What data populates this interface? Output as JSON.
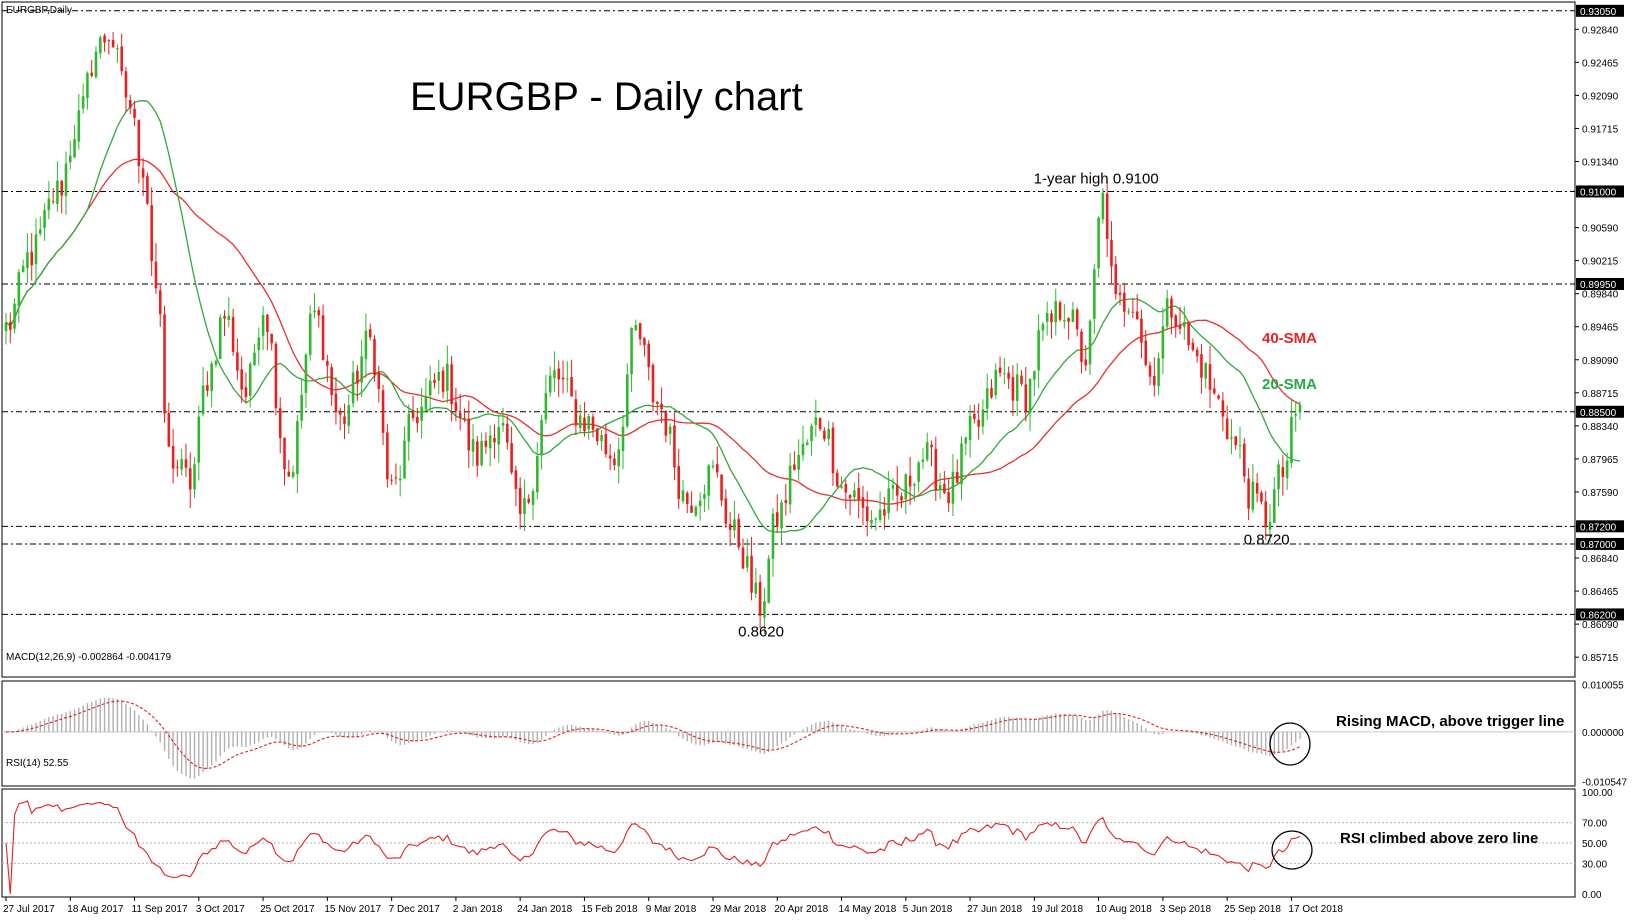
{
  "chart_data": {
    "type": "candlestick",
    "symbol_label": "EURGBP,Daily",
    "title": "EURGBP - Daily chart",
    "x_tick_labels": [
      "27 Jul 2017",
      "18 Aug 2017",
      "11 Sep 2017",
      "3 Oct 2017",
      "25 Oct 2017",
      "15 Nov 2017",
      "7 Dec 2017",
      "2 Jan 2018",
      "24 Jan 2018",
      "15 Feb 2018",
      "9 Mar 2018",
      "29 Mar 2018",
      "20 Apr 2018",
      "14 May 2018",
      "5 Jun 2018",
      "27 Jun 2018",
      "19 Jul 2018",
      "10 Aug 2018",
      "3 Sep 2018",
      "25 Sep 2018",
      "17 Oct 2018"
    ],
    "price_axis": {
      "ylim": [
        0.8549,
        0.9315
      ],
      "ticks": [
        "0.92840",
        "0.92465",
        "0.92090",
        "0.91715",
        "0.91340",
        "0.90590",
        "0.90215",
        "0.89840",
        "0.89465",
        "0.89090",
        "0.88715",
        "0.88340",
        "0.87965",
        "0.87590",
        "0.86840",
        "0.86465",
        "0.86090",
        "0.85715"
      ],
      "highlighted_levels": [
        "0.93050",
        "0.91000",
        "0.89950",
        "0.88500",
        "0.87200",
        "0.87000",
        "0.86200"
      ]
    },
    "horizontal_lines": [
      0.9305,
      0.91,
      0.8995,
      0.885,
      0.872,
      0.87,
      0.862
    ],
    "annotations": [
      {
        "text": "1-year high 0.9100",
        "x_index": 255,
        "price": 0.91
      },
      {
        "text": "0.8620",
        "x_index": 176,
        "price": 0.862
      },
      {
        "text": "0.8720",
        "x_index": 294,
        "price": 0.872
      },
      {
        "text": "40-SMA",
        "color": "#ee2222"
      },
      {
        "text": "20-SMA",
        "color": "#22aa44"
      }
    ],
    "anchors": [
      [
        0,
        0.8945
      ],
      [
        6,
        0.903
      ],
      [
        12,
        0.91
      ],
      [
        17,
        0.918
      ],
      [
        21,
        0.926
      ],
      [
        24,
        0.928
      ],
      [
        28,
        0.921
      ],
      [
        32,
        0.913
      ],
      [
        35,
        0.899
      ],
      [
        38,
        0.88
      ],
      [
        43,
        0.877
      ],
      [
        47,
        0.889
      ],
      [
        51,
        0.896
      ],
      [
        56,
        0.887
      ],
      [
        60,
        0.897
      ],
      [
        66,
        0.878
      ],
      [
        72,
        0.896
      ],
      [
        78,
        0.884
      ],
      [
        85,
        0.893
      ],
      [
        90,
        0.876
      ],
      [
        96,
        0.885
      ],
      [
        102,
        0.889
      ],
      [
        110,
        0.88
      ],
      [
        115,
        0.884
      ],
      [
        120,
        0.873
      ],
      [
        128,
        0.889
      ],
      [
        135,
        0.884
      ],
      [
        142,
        0.88
      ],
      [
        147,
        0.894
      ],
      [
        152,
        0.886
      ],
      [
        159,
        0.875
      ],
      [
        165,
        0.878
      ],
      [
        170,
        0.871
      ],
      [
        176,
        0.863
      ],
      [
        180,
        0.873
      ],
      [
        185,
        0.88
      ],
      [
        190,
        0.884
      ],
      [
        196,
        0.876
      ],
      [
        202,
        0.873
      ],
      [
        208,
        0.875
      ],
      [
        214,
        0.88
      ],
      [
        220,
        0.876
      ],
      [
        226,
        0.883
      ],
      [
        232,
        0.889
      ],
      [
        238,
        0.887
      ],
      [
        242,
        0.894
      ],
      [
        247,
        0.897
      ],
      [
        252,
        0.891
      ],
      [
        256,
        0.909
      ],
      [
        259,
        0.897
      ],
      [
        263,
        0.898
      ],
      [
        267,
        0.889
      ],
      [
        272,
        0.897
      ],
      [
        278,
        0.891
      ],
      [
        283,
        0.886
      ],
      [
        287,
        0.881
      ],
      [
        291,
        0.875
      ],
      [
        294,
        0.873
      ],
      [
        298,
        0.878
      ],
      [
        301,
        0.884
      ],
      [
        302,
        0.8858
      ]
    ],
    "last_close": 0.8858,
    "indicators": {
      "macd": {
        "label": "MACD(12,26,9) -0.002864 -0.004179",
        "ticks": [
          "0.010055",
          "0.000000",
          "-0.010547"
        ],
        "ylim": [
          -0.0115,
          0.0108
        ],
        "annotation": "Rising MACD, above trigger line"
      },
      "rsi": {
        "label": "RSI(14) 52.55",
        "ticks": [
          "100.00",
          "70.00",
          "50.00",
          "30.00",
          "0.00"
        ],
        "ylim": [
          -3,
          103
        ],
        "levels": [
          70,
          50,
          30
        ],
        "annotation": "RSI climbed above zero line"
      }
    },
    "colors": {
      "up_candle": "#2db82d",
      "down_candle": "#ee1c1c",
      "sma20": "#2faa3a",
      "sma40": "#e83030",
      "macd_hist": "#b0b0b0",
      "macd_signal": "#e02020",
      "rsi_line": "#e02020",
      "grid_dash": "#000000"
    }
  }
}
